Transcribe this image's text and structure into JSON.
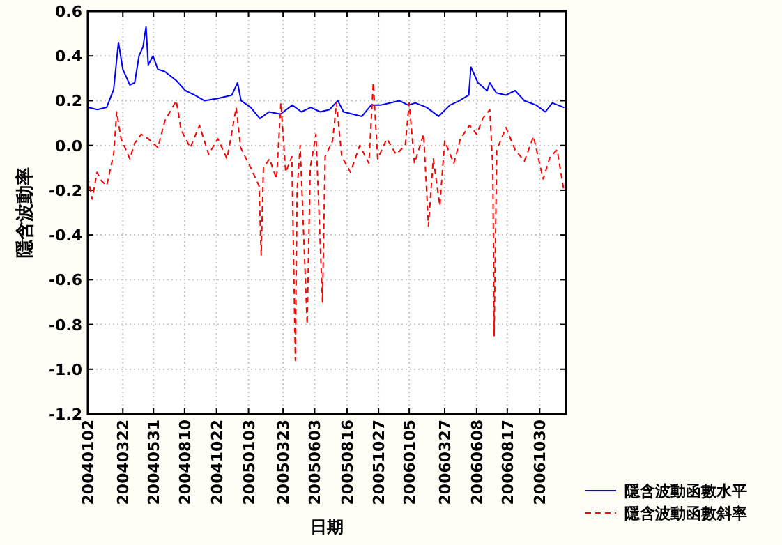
{
  "chart_data": {
    "type": "line",
    "xlabel": "日期",
    "ylabel": "隱含波動率",
    "xlim": [
      "2004-01-02",
      "2006-12-29"
    ],
    "ylim": [
      -1.2,
      0.6
    ],
    "yticks": [
      {
        "value": -1.2,
        "label": "-1.2"
      },
      {
        "value": -1.0,
        "label": "-1.0"
      },
      {
        "value": -0.8,
        "label": "-0.8"
      },
      {
        "value": -0.6,
        "label": "-0.6"
      },
      {
        "value": -0.4,
        "label": "-0.4"
      },
      {
        "value": -0.2,
        "label": "-0.2"
      },
      {
        "value": 0.0,
        "label": "0.0"
      },
      {
        "value": 0.2,
        "label": "0.2"
      },
      {
        "value": 0.4,
        "label": "0.4"
      },
      {
        "value": 0.6,
        "label": "0.6"
      }
    ],
    "xticks": [
      {
        "value": "2004-01-02",
        "label": "20040102"
      },
      {
        "value": "2004-03-22",
        "label": "20040322"
      },
      {
        "value": "2004-05-31",
        "label": "20040531"
      },
      {
        "value": "2004-08-10",
        "label": "20040810"
      },
      {
        "value": "2004-10-22",
        "label": "20041022"
      },
      {
        "value": "2005-01-03",
        "label": "20050103"
      },
      {
        "value": "2005-03-23",
        "label": "20050323"
      },
      {
        "value": "2005-06-03",
        "label": "20050603"
      },
      {
        "value": "2005-08-16",
        "label": "20050816"
      },
      {
        "value": "2005-10-27",
        "label": "20051027"
      },
      {
        "value": "2006-01-05",
        "label": "20060105"
      },
      {
        "value": "2006-03-27",
        "label": "20060327"
      },
      {
        "value": "2006-06-08",
        "label": "20060608"
      },
      {
        "value": "2006-08-17",
        "label": "20060817"
      },
      {
        "value": "2006-10-30",
        "label": "20061030"
      }
    ],
    "grid": true,
    "legend": "bottom right",
    "series": [
      {
        "name": "隱含波動函數水平",
        "color": "#0000ff",
        "line_style": "solid",
        "x": [
          "2004-01-02",
          "2004-01-24",
          "2004-02-14",
          "2004-03-01",
          "2004-03-12",
          "2004-03-22",
          "2004-04-07",
          "2004-04-18",
          "2004-04-28",
          "2004-05-07",
          "2004-05-14",
          "2004-05-19",
          "2004-05-30",
          "2004-06-10",
          "2004-06-26",
          "2004-07-22",
          "2004-08-12",
          "2004-09-02",
          "2004-09-24",
          "2004-10-25",
          "2004-11-26",
          "2004-12-09",
          "2004-12-17",
          "2005-01-08",
          "2005-01-29",
          "2005-02-19",
          "2005-03-17",
          "2005-04-13",
          "2005-05-04",
          "2005-05-25",
          "2005-06-16",
          "2005-07-07",
          "2005-07-26",
          "2005-08-08",
          "2005-08-29",
          "2005-09-19",
          "2005-10-10",
          "2005-10-31",
          "2005-11-22",
          "2005-12-13",
          "2006-01-03",
          "2006-01-19",
          "2006-02-14",
          "2006-03-13",
          "2006-04-08",
          "2006-04-30",
          "2006-05-21",
          "2006-05-26",
          "2006-06-11",
          "2006-07-02",
          "2006-07-08",
          "2006-07-23",
          "2006-08-14",
          "2006-09-04",
          "2006-09-25",
          "2006-10-22",
          "2006-11-12",
          "2006-11-28",
          "2006-12-24"
        ],
        "values": [
          0.17,
          0.16,
          0.17,
          0.25,
          0.46,
          0.34,
          0.27,
          0.28,
          0.4,
          0.44,
          0.53,
          0.36,
          0.4,
          0.34,
          0.33,
          0.29,
          0.245,
          0.225,
          0.2,
          0.21,
          0.225,
          0.28,
          0.2,
          0.17,
          0.12,
          0.15,
          0.14,
          0.18,
          0.15,
          0.17,
          0.15,
          0.16,
          0.2,
          0.15,
          0.14,
          0.13,
          0.18,
          0.18,
          0.19,
          0.2,
          0.18,
          0.19,
          0.17,
          0.13,
          0.18,
          0.2,
          0.225,
          0.35,
          0.28,
          0.245,
          0.28,
          0.235,
          0.225,
          0.245,
          0.2,
          0.18,
          0.15,
          0.19,
          0.17
        ]
      },
      {
        "name": "隱含波動函數斜率",
        "color": "#ff0000",
        "line_style": "dashed",
        "x": [
          "2004-01-02",
          "2004-01-12",
          "2004-01-23",
          "2004-02-03",
          "2004-02-14",
          "2004-03-01",
          "2004-03-08",
          "2004-03-18",
          "2004-04-07",
          "2004-04-18",
          "2004-05-03",
          "2004-05-19",
          "2004-06-10",
          "2004-06-26",
          "2004-07-22",
          "2004-08-02",
          "2004-08-23",
          "2004-09-13",
          "2004-10-04",
          "2004-10-25",
          "2004-11-15",
          "2004-12-06",
          "2004-12-16",
          "2005-01-08",
          "2005-01-27",
          "2005-02-01",
          "2005-02-06",
          "2005-02-20",
          "2005-03-08",
          "2005-03-18",
          "2005-03-29",
          "2005-04-12",
          "2005-04-18",
          "2005-04-20",
          "2005-04-24",
          "2005-05-01",
          "2005-05-17",
          "2005-05-24",
          "2005-06-06",
          "2005-06-21",
          "2005-06-27",
          "2005-07-14",
          "2005-07-23",
          "2005-08-04",
          "2005-08-24",
          "2005-09-14",
          "2005-10-05",
          "2005-10-15",
          "2005-10-25",
          "2005-11-15",
          "2005-12-06",
          "2005-12-27",
          "2006-01-05",
          "2006-01-17",
          "2006-02-07",
          "2006-02-18",
          "2006-03-01",
          "2006-03-16",
          "2006-03-27",
          "2006-04-17",
          "2006-05-02",
          "2006-05-23",
          "2006-06-08",
          "2006-06-22",
          "2006-07-08",
          "2006-07-15",
          "2006-07-18",
          "2006-07-24",
          "2006-08-14",
          "2006-09-04",
          "2006-09-25",
          "2006-10-16",
          "2006-11-01",
          "2006-11-07",
          "2006-11-23",
          "2006-12-09",
          "2006-12-24"
        ],
        "values": [
          -0.14,
          -0.24,
          -0.12,
          -0.16,
          -0.18,
          -0.04,
          0.15,
          0.03,
          -0.06,
          0.01,
          0.05,
          0.03,
          -0.01,
          0.11,
          0.2,
          0.07,
          -0.01,
          0.09,
          -0.04,
          0.03,
          -0.06,
          0.17,
          -0.01,
          -0.1,
          -0.18,
          -0.49,
          -0.1,
          -0.06,
          -0.15,
          0.19,
          -0.12,
          -0.05,
          -0.73,
          -0.96,
          -0.2,
          0.0,
          -0.8,
          -0.1,
          0.05,
          -0.7,
          -0.05,
          0.02,
          0.19,
          -0.05,
          -0.12,
          0.0,
          -0.08,
          0.28,
          -0.06,
          0.03,
          -0.04,
          0.0,
          0.19,
          -0.08,
          0.05,
          -0.36,
          -0.06,
          -0.27,
          0.02,
          -0.08,
          0.03,
          0.09,
          0.05,
          0.12,
          0.16,
          -0.1,
          -0.85,
          -0.02,
          0.08,
          -0.02,
          -0.07,
          0.04,
          -0.1,
          -0.15,
          -0.05,
          -0.02,
          -0.2
        ]
      }
    ]
  }
}
